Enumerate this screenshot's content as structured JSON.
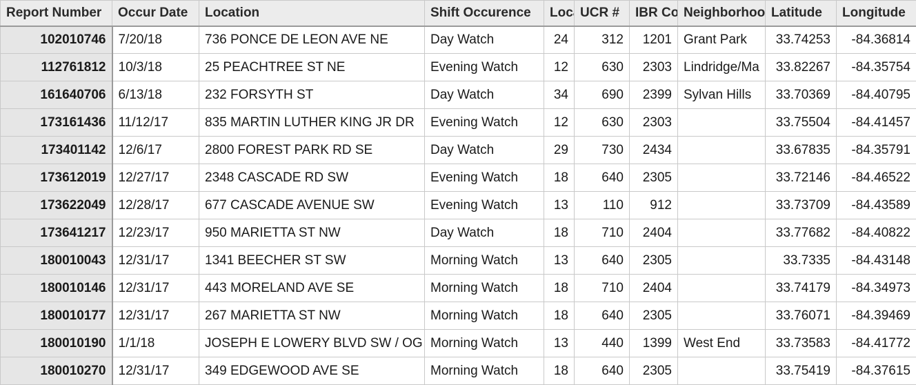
{
  "columns": [
    "Report Number",
    "Occur Date",
    "Location",
    "Shift Occurence",
    "Loca",
    "UCR #",
    "IBR Co",
    "Neighborhoo",
    "Latitude",
    "Longitude"
  ],
  "rows": [
    [
      "102010746",
      "7/20/18",
      "736 PONCE DE LEON AVE NE",
      "Day Watch",
      "24",
      "312",
      "1201",
      "Grant Park",
      "33.74253",
      "-84.36814"
    ],
    [
      "112761812",
      "10/3/18",
      "25 PEACHTREE ST NE",
      "Evening Watch",
      "12",
      "630",
      "2303",
      "Lindridge/Ma",
      "33.82267",
      "-84.35754"
    ],
    [
      "161640706",
      "6/13/18",
      "232 FORSYTH ST",
      "Day Watch",
      "34",
      "690",
      "2399",
      "Sylvan Hills",
      "33.70369",
      "-84.40795"
    ],
    [
      "173161436",
      "11/12/17",
      "835 MARTIN LUTHER KING JR DR",
      "Evening Watch",
      "12",
      "630",
      "2303",
      "",
      "33.75504",
      "-84.41457"
    ],
    [
      "173401142",
      "12/6/17",
      "2800 FOREST PARK RD SE",
      "Day Watch",
      "29",
      "730",
      "2434",
      "",
      "33.67835",
      "-84.35791"
    ],
    [
      "173612019",
      "12/27/17",
      "2348 CASCADE RD SW",
      "Evening Watch",
      "18",
      "640",
      "2305",
      "",
      "33.72146",
      "-84.46522"
    ],
    [
      "173622049",
      "12/28/17",
      "677 CASCADE AVENUE SW",
      "Evening Watch",
      "13",
      "110",
      "912",
      "",
      "33.73709",
      "-84.43589"
    ],
    [
      "173641217",
      "12/23/17",
      "950 MARIETTA ST NW",
      "Day Watch",
      "18",
      "710",
      "2404",
      "",
      "33.77682",
      "-84.40822"
    ],
    [
      "180010043",
      "12/31/17",
      "1341 BEECHER ST SW",
      "Morning Watch",
      "13",
      "640",
      "2305",
      "",
      "33.7335",
      "-84.43148"
    ],
    [
      "180010146",
      "12/31/17",
      "443 MORELAND AVE SE",
      "Morning Watch",
      "18",
      "710",
      "2404",
      "",
      "33.74179",
      "-84.34973"
    ],
    [
      "180010177",
      "12/31/17",
      "267 MARIETTA ST NW",
      "Morning Watch",
      "18",
      "640",
      "2305",
      "",
      "33.76071",
      "-84.39469"
    ],
    [
      "180010190",
      "1/1/18",
      "JOSEPH E LOWERY BLVD SW / OG",
      "Morning Watch",
      "13",
      "440",
      "1399",
      "West End",
      "33.73583",
      "-84.41772"
    ],
    [
      "180010270",
      "12/31/17",
      "349 EDGEWOOD AVE SE",
      "Morning Watch",
      "18",
      "640",
      "2305",
      "",
      "33.75419",
      "-84.37615"
    ]
  ]
}
